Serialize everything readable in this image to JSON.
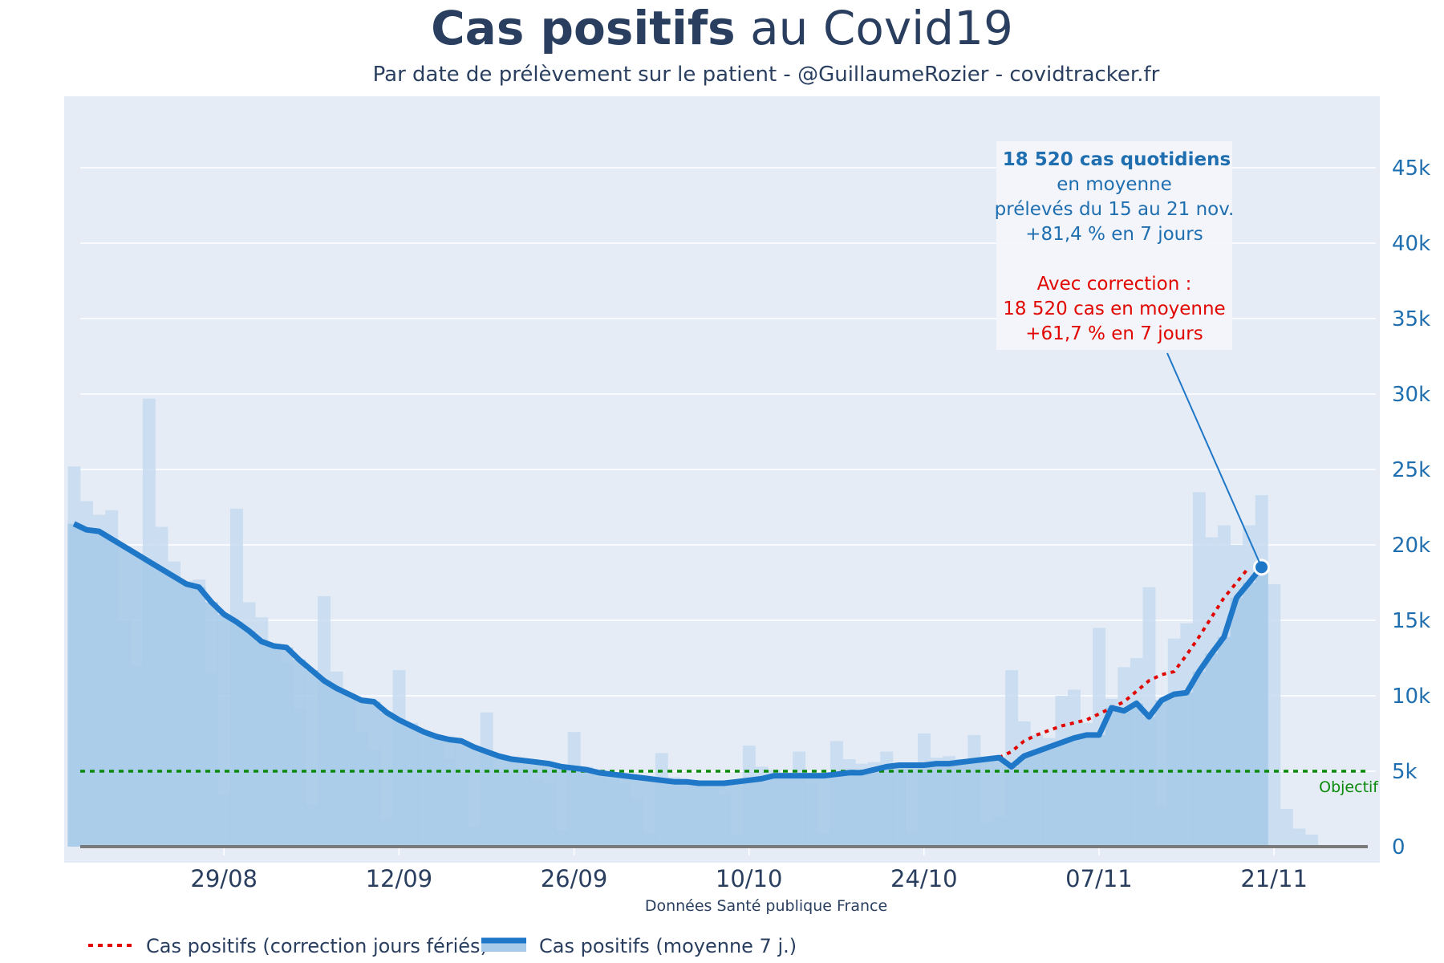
{
  "header": {
    "title_bold": "Cas positifs",
    "title_rest": " au Covid19",
    "subtitle": "Par date de prélèvement sur le patient - @GuillaumeRozier - covidtracker.fr"
  },
  "source": "Données Santé publique France",
  "annotation": {
    "lines_blue": [
      "18 520 cas quotidiens",
      "en moyenne",
      "prélevés du 15 au 21 nov.",
      "+81,4 % en 7 jours"
    ],
    "lines_red": [
      "Avec correction :",
      "18 520 cas en moyenne",
      "+61,7 % en 7 jours"
    ]
  },
  "objective_label": "Objectif",
  "legend": {
    "corrected_label": "Cas positifs (correction jours fériés)",
    "average_label": "Cas positifs (moyenne 7 j.)"
  },
  "colors": {
    "title": "#2a3f5f",
    "plot_bg": "#e5ecf6",
    "bars": "#a7cbe9",
    "line": "#1f77c8",
    "correction": "#e10600",
    "objective": "#0a8a0a",
    "axis_text": "#1f6fb0",
    "annotation_red": "#e10600"
  },
  "chart_data": {
    "type": "bar",
    "xlabel": "Données Santé publique France",
    "ylabel": "",
    "x_tick_labels": [
      "29/08",
      "12/09",
      "26/09",
      "10/10",
      "24/10",
      "07/11",
      "21/11"
    ],
    "x_tick_days": [
      11,
      25,
      39,
      53,
      67,
      81,
      95
    ],
    "y_tick_labels": [
      "0",
      "5k",
      "10k",
      "15k",
      "20k",
      "25k",
      "30k",
      "35k",
      "40k",
      "45k"
    ],
    "y_tick_values": [
      0,
      5000,
      10000,
      15000,
      20000,
      25000,
      30000,
      35000,
      40000,
      45000
    ],
    "ylim": [
      0,
      50000
    ],
    "xlim_days": [
      -1,
      103
    ],
    "objective": 5000,
    "daily_bars": [
      25200,
      22900,
      22000,
      22300,
      15000,
      12000,
      29700,
      21200,
      18900,
      17600,
      17700,
      11500,
      3500,
      22400,
      16200,
      15200,
      13200,
      12200,
      9200,
      2800,
      16600,
      11600,
      9700,
      7600,
      6400,
      1800,
      11700,
      8200,
      7200,
      7200,
      5800,
      4800,
      1300,
      8900,
      5000,
      4800,
      5200,
      4400,
      4200,
      1100,
      7600,
      5300,
      4600,
      4500,
      4200,
      3200,
      900,
      6200,
      4600,
      4100,
      4300,
      3900,
      3500,
      800,
      6700,
      5300,
      5100,
      4900,
      6300,
      4200,
      900,
      7000,
      5800,
      5500,
      5600,
      6300,
      5100,
      1000,
      7500,
      5900,
      6000,
      5800,
      7400,
      1600,
      2000,
      11700,
      8300,
      7400,
      7200,
      10000,
      10400,
      8200,
      14500,
      9800,
      11900,
      12500,
      17200,
      2700,
      13800,
      14800,
      23500,
      20500,
      21300,
      20000,
      21300,
      23300,
      17400,
      2500,
      1200,
      800
    ],
    "daily_bars_first_day": -1,
    "moving_average": [
      21400,
      21000,
      20900,
      20400,
      19900,
      19400,
      18900,
      18400,
      17900,
      17400,
      17200,
      16200,
      15400,
      14900,
      14300,
      13600,
      13300,
      13200,
      12400,
      11700,
      11000,
      10500,
      10100,
      9700,
      9600,
      8900,
      8400,
      8000,
      7600,
      7300,
      7100,
      7000,
      6600,
      6300,
      6000,
      5800,
      5700,
      5600,
      5500,
      5300,
      5200,
      5100,
      4900,
      4800,
      4700,
      4600,
      4500,
      4400,
      4300,
      4300,
      4200,
      4200,
      4200,
      4300,
      4400,
      4500,
      4700,
      4700,
      4700,
      4700,
      4700,
      4800,
      4900,
      4900,
      5100,
      5300,
      5400,
      5400,
      5400,
      5500,
      5500,
      5600,
      5700,
      5800,
      5900,
      5300,
      6000,
      6300,
      6600,
      6900,
      7200,
      7400,
      7400,
      9200,
      9000,
      9500,
      8600,
      9700,
      10100,
      10200,
      11600,
      12800,
      13900,
      16500,
      17500,
      18520
    ],
    "moving_average_first_day": -1,
    "corrected_average": [
      5900,
      6300,
      7000,
      7400,
      7700,
      8000,
      8200,
      8400,
      8800,
      9200,
      9600,
      10300,
      11000,
      11400,
      11600,
      12700,
      13900,
      15200,
      16500,
      17500,
      18520
    ],
    "corrected_first_day": 73,
    "series": [
      {
        "name": "Cas positifs (correction jours fériés)",
        "key": "corrected_average"
      },
      {
        "name": "Cas positifs (moyenne 7 j.)",
        "key": "moving_average"
      }
    ],
    "grid": true,
    "legend_position": "bottom-left"
  }
}
